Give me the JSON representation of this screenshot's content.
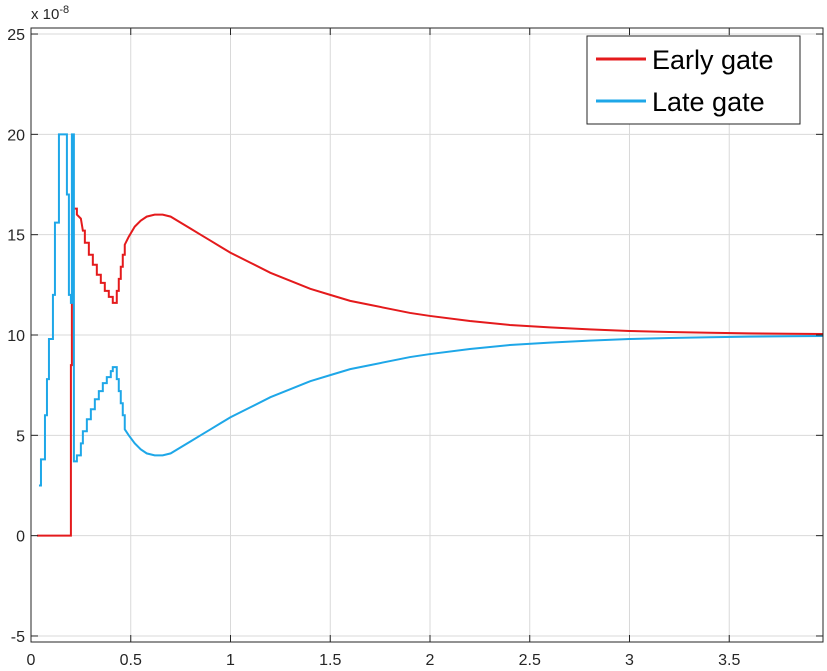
{
  "chart_data": {
    "type": "line",
    "title": "",
    "xlabel": "",
    "ylabel": "",
    "xlim": [
      0,
      3.97
    ],
    "ylim": [
      -5.3,
      25.3
    ],
    "y_exponent": {
      "base": "x 10",
      "power": "-8"
    },
    "grid": true,
    "legend_position": "top-right",
    "x_ticks": [
      0,
      0.5,
      1,
      1.5,
      2,
      2.5,
      3,
      3.5
    ],
    "x_tick_labels": [
      "0",
      "0.5",
      "1",
      "1.5",
      "2",
      "2.5",
      "3",
      "3.5"
    ],
    "y_ticks": [
      -5,
      0,
      5,
      10,
      15,
      20,
      25
    ],
    "y_tick_labels": [
      "-5",
      "0",
      "5",
      "10",
      "15",
      "20",
      "25"
    ],
    "series": [
      {
        "name": "Early gate",
        "color": "#e41a1c",
        "points": [
          [
            0.03,
            0
          ],
          [
            0.2,
            0
          ],
          [
            0.2,
            8.5
          ],
          [
            0.205,
            8.5
          ],
          [
            0.205,
            11.6
          ],
          [
            0.21,
            11.6
          ],
          [
            0.21,
            16.3
          ],
          [
            0.23,
            16.3
          ],
          [
            0.23,
            16
          ],
          [
            0.25,
            15.8
          ],
          [
            0.26,
            15.2
          ],
          [
            0.27,
            15.2
          ],
          [
            0.27,
            14.6
          ],
          [
            0.29,
            14.6
          ],
          [
            0.29,
            14.0
          ],
          [
            0.31,
            14.0
          ],
          [
            0.31,
            13.5
          ],
          [
            0.33,
            13.5
          ],
          [
            0.33,
            13.0
          ],
          [
            0.35,
            13.0
          ],
          [
            0.35,
            12.6
          ],
          [
            0.37,
            12.6
          ],
          [
            0.37,
            12.2
          ],
          [
            0.39,
            12.2
          ],
          [
            0.39,
            11.9
          ],
          [
            0.41,
            11.9
          ],
          [
            0.41,
            11.6
          ],
          [
            0.43,
            11.6
          ],
          [
            0.43,
            12.2
          ],
          [
            0.44,
            12.2
          ],
          [
            0.44,
            12.8
          ],
          [
            0.45,
            12.8
          ],
          [
            0.45,
            13.4
          ],
          [
            0.46,
            13.4
          ],
          [
            0.46,
            14.0
          ],
          [
            0.47,
            14.0
          ],
          [
            0.47,
            14.5
          ],
          [
            0.49,
            14.9
          ],
          [
            0.52,
            15.4
          ],
          [
            0.55,
            15.7
          ],
          [
            0.58,
            15.9
          ],
          [
            0.62,
            16.0
          ],
          [
            0.66,
            16.0
          ],
          [
            0.7,
            15.9
          ],
          [
            0.75,
            15.6
          ],
          [
            0.8,
            15.3
          ],
          [
            0.85,
            15.0
          ],
          [
            0.9,
            14.7
          ],
          [
            0.95,
            14.4
          ],
          [
            1.0,
            14.1
          ],
          [
            1.1,
            13.6
          ],
          [
            1.2,
            13.1
          ],
          [
            1.3,
            12.7
          ],
          [
            1.4,
            12.3
          ],
          [
            1.5,
            12.0
          ],
          [
            1.6,
            11.7
          ],
          [
            1.7,
            11.5
          ],
          [
            1.8,
            11.3
          ],
          [
            1.9,
            11.1
          ],
          [
            2.0,
            10.95
          ],
          [
            2.2,
            10.7
          ],
          [
            2.4,
            10.5
          ],
          [
            2.6,
            10.38
          ],
          [
            2.8,
            10.28
          ],
          [
            3.0,
            10.2
          ],
          [
            3.2,
            10.15
          ],
          [
            3.4,
            10.11
          ],
          [
            3.6,
            10.08
          ],
          [
            3.8,
            10.06
          ],
          [
            3.97,
            10.05
          ]
        ]
      },
      {
        "name": "Late gate",
        "color": "#1ea7e8",
        "points": [
          [
            0.04,
            2.5
          ],
          [
            0.05,
            2.5
          ],
          [
            0.05,
            3.8
          ],
          [
            0.07,
            3.8
          ],
          [
            0.07,
            6.0
          ],
          [
            0.08,
            6.0
          ],
          [
            0.08,
            7.8
          ],
          [
            0.09,
            7.8
          ],
          [
            0.09,
            9.8
          ],
          [
            0.11,
            9.8
          ],
          [
            0.11,
            12.0
          ],
          [
            0.12,
            12.0
          ],
          [
            0.12,
            15.6
          ],
          [
            0.14,
            15.6
          ],
          [
            0.14,
            20.0
          ],
          [
            0.18,
            20.0
          ],
          [
            0.18,
            17.0
          ],
          [
            0.19,
            17.0
          ],
          [
            0.19,
            12.0
          ],
          [
            0.2,
            12.0
          ],
          [
            0.2,
            11.6
          ],
          [
            0.205,
            11.6
          ],
          [
            0.205,
            20.0
          ],
          [
            0.215,
            20.0
          ],
          [
            0.215,
            3.7
          ],
          [
            0.23,
            3.7
          ],
          [
            0.23,
            4.0
          ],
          [
            0.25,
            4.0
          ],
          [
            0.25,
            4.6
          ],
          [
            0.26,
            4.6
          ],
          [
            0.26,
            5.2
          ],
          [
            0.28,
            5.2
          ],
          [
            0.28,
            5.8
          ],
          [
            0.3,
            5.8
          ],
          [
            0.3,
            6.3
          ],
          [
            0.32,
            6.3
          ],
          [
            0.32,
            6.8
          ],
          [
            0.34,
            6.8
          ],
          [
            0.34,
            7.2
          ],
          [
            0.36,
            7.2
          ],
          [
            0.36,
            7.6
          ],
          [
            0.38,
            7.6
          ],
          [
            0.38,
            7.9
          ],
          [
            0.4,
            7.9
          ],
          [
            0.4,
            8.2
          ],
          [
            0.41,
            8.2
          ],
          [
            0.41,
            8.4
          ],
          [
            0.43,
            8.4
          ],
          [
            0.43,
            7.8
          ],
          [
            0.44,
            7.8
          ],
          [
            0.44,
            7.2
          ],
          [
            0.45,
            7.2
          ],
          [
            0.45,
            6.6
          ],
          [
            0.46,
            6.6
          ],
          [
            0.46,
            6.0
          ],
          [
            0.47,
            6.0
          ],
          [
            0.47,
            5.3
          ],
          [
            0.49,
            5.0
          ],
          [
            0.52,
            4.6
          ],
          [
            0.55,
            4.3
          ],
          [
            0.58,
            4.1
          ],
          [
            0.62,
            4.0
          ],
          [
            0.66,
            4.0
          ],
          [
            0.7,
            4.1
          ],
          [
            0.75,
            4.4
          ],
          [
            0.8,
            4.7
          ],
          [
            0.85,
            5.0
          ],
          [
            0.9,
            5.3
          ],
          [
            0.95,
            5.6
          ],
          [
            1.0,
            5.9
          ],
          [
            1.1,
            6.4
          ],
          [
            1.2,
            6.9
          ],
          [
            1.3,
            7.3
          ],
          [
            1.4,
            7.7
          ],
          [
            1.5,
            8.0
          ],
          [
            1.6,
            8.3
          ],
          [
            1.7,
            8.5
          ],
          [
            1.8,
            8.7
          ],
          [
            1.9,
            8.9
          ],
          [
            2.0,
            9.05
          ],
          [
            2.2,
            9.3
          ],
          [
            2.4,
            9.5
          ],
          [
            2.6,
            9.62
          ],
          [
            2.8,
            9.72
          ],
          [
            3.0,
            9.8
          ],
          [
            3.2,
            9.85
          ],
          [
            3.4,
            9.89
          ],
          [
            3.6,
            9.92
          ],
          [
            3.8,
            9.94
          ],
          [
            3.97,
            9.95
          ]
        ]
      }
    ]
  }
}
